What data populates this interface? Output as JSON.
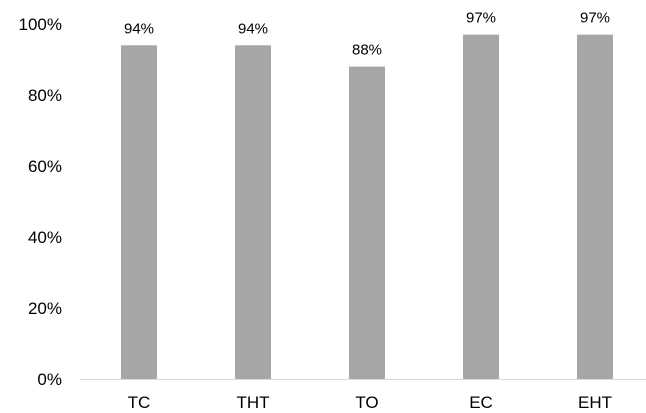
{
  "chart_data": {
    "type": "bar",
    "categories": [
      "TC",
      "THT",
      "TO",
      "EC",
      "EHT"
    ],
    "values": [
      94,
      94,
      88,
      97,
      97
    ],
    "data_labels": [
      "94%",
      "94%",
      "88%",
      "97%",
      "97%"
    ],
    "ylim": [
      0,
      100
    ],
    "y_ticks": [
      0,
      20,
      40,
      60,
      80,
      100
    ],
    "y_tick_labels": [
      "0%",
      "20%",
      "40%",
      "60%",
      "80%",
      "100%"
    ],
    "title": "",
    "xlabel": "",
    "ylabel": "",
    "grid": false,
    "legend": "none",
    "bar_color": "#a6a6a6",
    "axis_color": "#d9d9d9"
  }
}
